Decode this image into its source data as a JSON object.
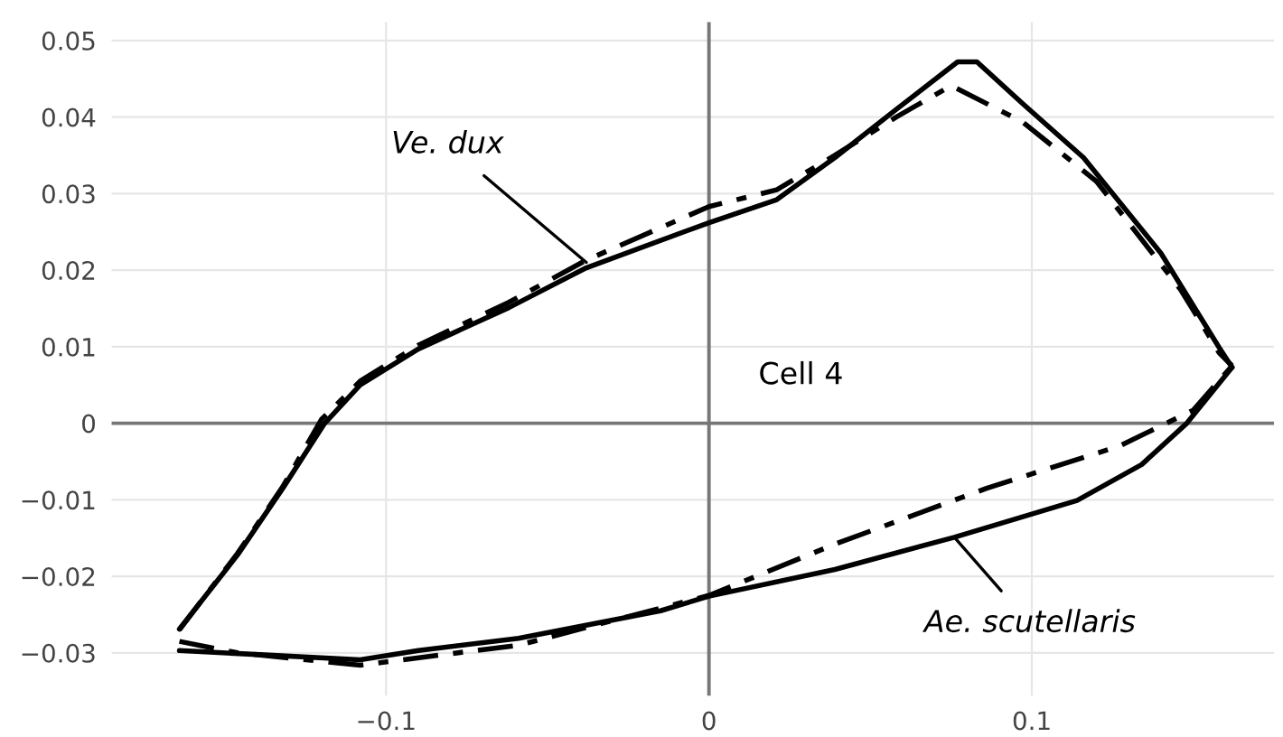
{
  "chart_data": {
    "type": "line",
    "xlim": [
      -0.185,
      0.175
    ],
    "ylim": [
      -0.0356,
      0.0524
    ],
    "xticks": [
      {
        "value": -0.1,
        "label": "−0.1"
      },
      0,
      0.1
    ],
    "yticks": [
      {
        "value": -0.03,
        "label": "−0.03"
      },
      {
        "value": -0.02,
        "label": "−0.02"
      },
      {
        "value": -0.01,
        "label": "−0.01"
      },
      0,
      0.01,
      0.02,
      0.03,
      0.04,
      0.05
    ],
    "grid": true,
    "marker": "none",
    "series": [
      {
        "color": "#000000",
        "line_style": "solid",
        "x": [
          -0.164,
          -0.146,
          -0.132,
          -0.119,
          -0.108,
          -0.09,
          -0.062,
          -0.038,
          0.0,
          0.021,
          0.039,
          0.058,
          0.077,
          0.083,
          0.097,
          0.116,
          0.14,
          0.158,
          0.162
        ],
        "values": [
          -0.0269,
          -0.0172,
          -0.0085,
          0.0,
          0.005,
          0.0097,
          0.0151,
          0.0203,
          0.0262,
          0.0292,
          0.0347,
          0.041,
          0.0472,
          0.0472,
          0.0418,
          0.0347,
          0.0222,
          0.0099,
          0.0073
        ]
      },
      {
        "color": "#000000",
        "line_style": "solid",
        "x": [
          -0.164,
          -0.108,
          -0.09,
          -0.059,
          -0.015,
          0.0,
          0.039,
          0.076,
          0.114,
          0.134,
          0.148,
          0.162
        ],
        "values": [
          -0.0297,
          -0.0309,
          -0.0297,
          -0.0281,
          -0.0245,
          -0.0226,
          -0.0191,
          -0.0149,
          -0.0101,
          -0.0054,
          0.0,
          0.0073
        ]
      },
      {
        "color": "#000000",
        "line_style": "dashed",
        "x": [
          -0.164,
          -0.146,
          -0.132,
          -0.12,
          -0.108,
          -0.09,
          -0.062,
          -0.038,
          0.0,
          0.021,
          0.039,
          0.058,
          0.075,
          0.097,
          0.12,
          0.146,
          0.153,
          0.158,
          0.162
        ],
        "values": [
          -0.027,
          -0.017,
          -0.0083,
          0.0005,
          0.0055,
          0.0102,
          0.0158,
          0.0213,
          0.0283,
          0.0305,
          0.035,
          0.04,
          0.0441,
          0.0394,
          0.0316,
          0.0175,
          0.0127,
          0.0092,
          0.0075
        ]
      },
      {
        "color": "#000000",
        "line_style": "dashed",
        "x": [
          -0.164,
          -0.146,
          -0.108,
          -0.059,
          0.0,
          0.039,
          0.086,
          0.127,
          0.15,
          0.162
        ],
        "values": [
          -0.0285,
          -0.03,
          -0.0316,
          -0.029,
          -0.0225,
          -0.0158,
          -0.0085,
          -0.003,
          0.0017,
          0.0075
        ]
      }
    ],
    "annotations": [
      {
        "text": "Ve. dux",
        "x": -0.038,
        "y": 0.021
      },
      {
        "text": "Ae. scutellaris",
        "x": 0.076,
        "y": -0.0149
      },
      "Cell 4"
    ]
  }
}
